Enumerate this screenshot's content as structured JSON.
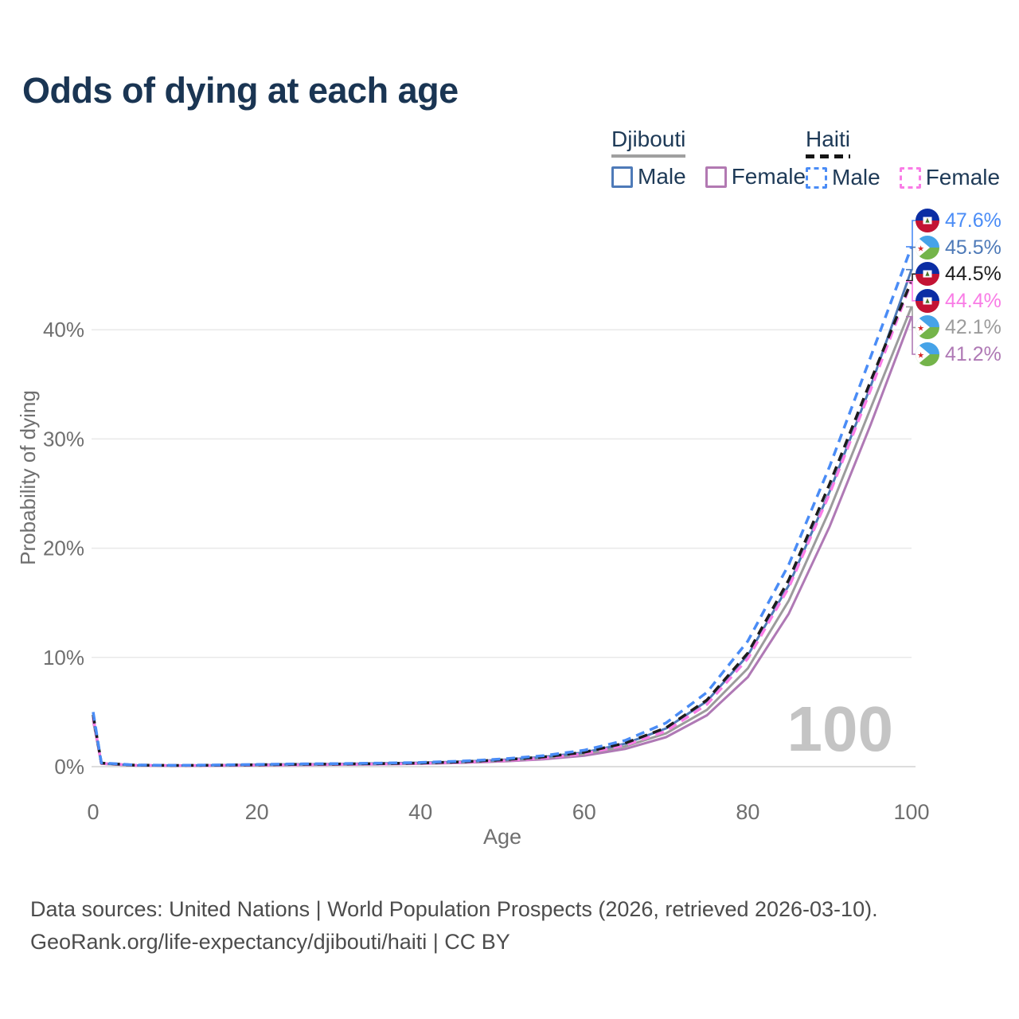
{
  "header": {
    "title": "Odds of dying at each age"
  },
  "legend": {
    "groups": [
      {
        "country": "Djibouti",
        "line_style": "solid",
        "underline_color": "#a0a0a0",
        "items": [
          {
            "label": "Male",
            "swatch_color": "#4e7ab8",
            "dashed": false
          },
          {
            "label": "Female",
            "swatch_color": "#b279b2",
            "dashed": false
          }
        ]
      },
      {
        "country": "Haiti",
        "line_style": "dashed",
        "underline_color": "#151515",
        "items": [
          {
            "label": "Male",
            "swatch_color": "#4a8cf6",
            "dashed": true
          },
          {
            "label": "Female",
            "swatch_color": "#f97ce6",
            "dashed": true
          }
        ]
      }
    ]
  },
  "chart_data": {
    "type": "line",
    "title": "Odds of dying at each age",
    "xlabel": "Age",
    "ylabel": "Probability of dying",
    "xlim": [
      0,
      100
    ],
    "ylim": [
      0,
      48
    ],
    "x_ticks": [
      0,
      20,
      40,
      60,
      80,
      100
    ],
    "y_ticks": [
      {
        "value": 0,
        "label": "0%"
      },
      {
        "value": 10,
        "label": "10%"
      },
      {
        "value": 20,
        "label": "20%"
      },
      {
        "value": 30,
        "label": "30%"
      },
      {
        "value": 40,
        "label": "40%"
      }
    ],
    "grid": "horizontal",
    "legend_position": "top-right",
    "watermark": "100",
    "x": [
      0,
      1,
      5,
      10,
      15,
      20,
      25,
      30,
      35,
      40,
      45,
      50,
      55,
      60,
      65,
      70,
      75,
      80,
      85,
      90,
      95,
      100
    ],
    "series": [
      {
        "name": "Haiti Male",
        "country": "Haiti",
        "sex": "male",
        "color": "#4a8cf6",
        "dashed": true,
        "flag_icon": "haiti-flag-icon",
        "end_label": "47.6%",
        "values": [
          5.0,
          0.35,
          0.15,
          0.12,
          0.15,
          0.2,
          0.25,
          0.28,
          0.32,
          0.38,
          0.5,
          0.7,
          1.0,
          1.5,
          2.4,
          4.0,
          6.8,
          11.5,
          18.5,
          27.5,
          37.5,
          47.6
        ]
      },
      {
        "name": "Djibouti Male",
        "country": "Djibouti",
        "sex": "male",
        "color": "#4e7ab8",
        "dashed": false,
        "flag_icon": "djibouti-flag-icon",
        "end_label": "45.5%",
        "values": [
          4.6,
          0.3,
          0.12,
          0.1,
          0.13,
          0.18,
          0.22,
          0.25,
          0.3,
          0.36,
          0.45,
          0.62,
          0.88,
          1.3,
          2.1,
          3.5,
          6.0,
          10.2,
          16.6,
          25.2,
          34.8,
          45.5
        ]
      },
      {
        "name": "Haiti Total",
        "country": "Haiti",
        "sex": "total",
        "color": "#1c1c1c",
        "dashed": true,
        "flag_icon": "haiti-flag-icon",
        "end_label": "44.5%",
        "values": [
          4.75,
          0.33,
          0.14,
          0.11,
          0.13,
          0.17,
          0.21,
          0.24,
          0.28,
          0.33,
          0.44,
          0.62,
          0.88,
          1.32,
          2.15,
          3.55,
          6.1,
          10.4,
          17.1,
          25.9,
          35.3,
          44.5
        ]
      },
      {
        "name": "Haiti Female",
        "country": "Haiti",
        "sex": "female",
        "color": "#f97ce6",
        "dashed": true,
        "flag_icon": "haiti-flag-icon",
        "end_label": "44.4%",
        "values": [
          4.5,
          0.3,
          0.13,
          0.1,
          0.11,
          0.14,
          0.17,
          0.2,
          0.24,
          0.29,
          0.39,
          0.55,
          0.78,
          1.18,
          1.95,
          3.25,
          5.7,
          9.9,
          16.4,
          25.0,
          34.5,
          44.4
        ]
      },
      {
        "name": "Djibouti Total",
        "country": "Djibouti",
        "sex": "total",
        "color": "#9c9c9c",
        "dashed": false,
        "flag_icon": "djibouti-flag-icon",
        "end_label": "42.1%",
        "values": [
          4.4,
          0.28,
          0.11,
          0.09,
          0.11,
          0.15,
          0.19,
          0.22,
          0.26,
          0.31,
          0.41,
          0.56,
          0.8,
          1.15,
          1.85,
          3.05,
          5.2,
          9.0,
          15.2,
          23.5,
          32.8,
          42.1
        ]
      },
      {
        "name": "Djibouti Female",
        "country": "Djibouti",
        "sex": "female",
        "color": "#af79b5",
        "dashed": false,
        "flag_icon": "djibouti-flag-icon",
        "end_label": "41.2%",
        "values": [
          4.2,
          0.26,
          0.1,
          0.08,
          0.09,
          0.12,
          0.15,
          0.18,
          0.21,
          0.26,
          0.35,
          0.48,
          0.68,
          1.0,
          1.62,
          2.7,
          4.7,
          8.2,
          14.0,
          22.0,
          31.3,
          41.2
        ]
      }
    ]
  },
  "footer": {
    "line1": "Data sources: United Nations | World Population Prospects (2026, retrieved 2026-03-10).",
    "line2": "GeoRank.org/life-expectancy/djibouti/haiti | CC BY"
  }
}
